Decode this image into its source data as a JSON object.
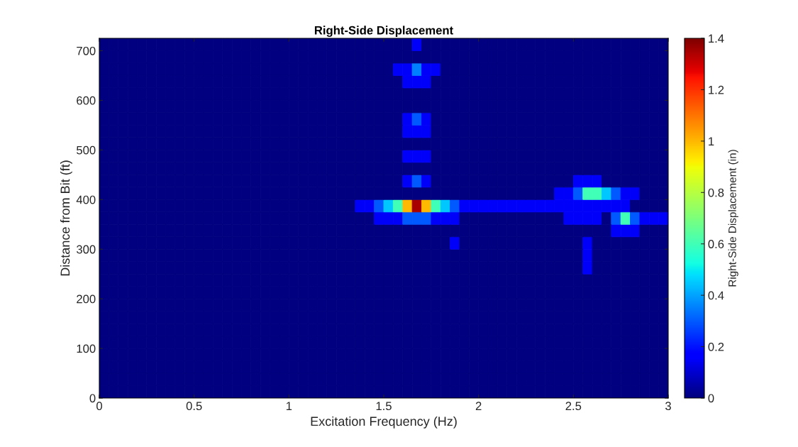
{
  "chart_data": {
    "type": "heatmap",
    "title": "Right-Side Displacement",
    "xlabel": "Excitation Frequency (Hz)",
    "ylabel": "Distance from Bit (ft)",
    "clabel": "Right-Side Displacement (in)",
    "x": [
      0.025,
      0.075,
      0.125,
      0.175,
      0.225,
      0.275,
      0.325,
      0.375,
      0.425,
      0.475,
      0.525,
      0.575,
      0.625,
      0.675,
      0.725,
      0.775,
      0.825,
      0.875,
      0.925,
      0.975,
      1.025,
      1.075,
      1.125,
      1.175,
      1.225,
      1.275,
      1.325,
      1.375,
      1.425,
      1.475,
      1.525,
      1.575,
      1.625,
      1.675,
      1.725,
      1.775,
      1.825,
      1.875,
      1.925,
      1.975,
      2.025,
      2.075,
      2.125,
      2.175,
      2.225,
      2.275,
      2.325,
      2.375,
      2.425,
      2.475,
      2.525,
      2.575,
      2.625,
      2.675,
      2.725,
      2.775,
      2.825,
      2.875,
      2.925,
      2.975
    ],
    "y": [
      712.5,
      687.5,
      662.5,
      637.5,
      612.5,
      587.5,
      562.5,
      537.5,
      512.5,
      487.5,
      462.5,
      437.5,
      412.5,
      387.5,
      362.5,
      337.5,
      312.5,
      287.5,
      262.5,
      237.5,
      212.5,
      187.5,
      162.5,
      137.5,
      112.5,
      87.5,
      62.5,
      37.5,
      12.5
    ],
    "cells": [
      [
        0,
        0,
        0,
        0,
        0,
        0,
        0,
        0,
        0,
        0,
        0,
        0,
        0,
        0,
        0,
        0,
        0,
        0,
        0,
        0,
        0,
        0,
        0,
        0,
        0,
        0,
        0,
        0,
        0,
        0,
        0,
        0,
        0,
        0.15,
        0,
        0,
        0,
        0,
        0,
        0,
        0,
        0,
        0,
        0,
        0,
        0,
        0,
        0,
        0,
        0,
        0,
        0,
        0,
        0,
        0,
        0,
        0,
        0,
        0,
        0
      ],
      [
        0,
        0,
        0,
        0,
        0,
        0,
        0,
        0,
        0,
        0,
        0,
        0,
        0,
        0,
        0,
        0,
        0,
        0,
        0,
        0,
        0,
        0,
        0,
        0,
        0,
        0,
        0,
        0,
        0,
        0,
        0,
        0,
        0,
        0,
        0,
        0,
        0,
        0,
        0,
        0,
        0,
        0,
        0,
        0,
        0,
        0,
        0,
        0,
        0,
        0,
        0,
        0,
        0,
        0,
        0,
        0,
        0,
        0,
        0,
        0
      ],
      [
        0,
        0,
        0,
        0,
        0,
        0,
        0,
        0,
        0,
        0,
        0,
        0,
        0,
        0,
        0,
        0,
        0,
        0,
        0,
        0,
        0,
        0,
        0,
        0,
        0,
        0,
        0,
        0,
        0,
        0,
        0,
        0.15,
        0.15,
        0.35,
        0.15,
        0.15,
        0,
        0,
        0,
        0,
        0,
        0,
        0,
        0,
        0,
        0,
        0,
        0,
        0,
        0,
        0,
        0,
        0,
        0,
        0,
        0,
        0,
        0,
        0,
        0
      ],
      [
        0,
        0,
        0,
        0,
        0,
        0,
        0,
        0,
        0,
        0,
        0,
        0,
        0,
        0,
        0,
        0,
        0,
        0,
        0,
        0,
        0,
        0,
        0,
        0,
        0,
        0,
        0,
        0,
        0,
        0,
        0,
        0,
        0.15,
        0.15,
        0.15,
        0,
        0,
        0,
        0,
        0,
        0,
        0,
        0,
        0,
        0,
        0,
        0,
        0,
        0,
        0,
        0,
        0,
        0,
        0,
        0,
        0,
        0,
        0,
        0,
        0
      ],
      [
        0,
        0,
        0,
        0,
        0,
        0,
        0,
        0,
        0,
        0,
        0,
        0,
        0,
        0,
        0,
        0,
        0,
        0,
        0,
        0,
        0,
        0,
        0,
        0,
        0,
        0,
        0,
        0,
        0,
        0,
        0,
        0,
        0,
        0,
        0,
        0,
        0,
        0,
        0,
        0,
        0,
        0,
        0,
        0,
        0,
        0,
        0,
        0,
        0,
        0,
        0,
        0,
        0,
        0,
        0,
        0,
        0,
        0,
        0,
        0
      ],
      [
        0,
        0,
        0,
        0,
        0,
        0,
        0,
        0,
        0,
        0,
        0,
        0,
        0,
        0,
        0,
        0,
        0,
        0,
        0,
        0,
        0,
        0,
        0,
        0,
        0,
        0,
        0,
        0,
        0,
        0,
        0,
        0,
        0,
        0,
        0,
        0,
        0,
        0,
        0,
        0,
        0,
        0,
        0,
        0,
        0,
        0,
        0,
        0,
        0,
        0,
        0,
        0,
        0,
        0,
        0,
        0,
        0,
        0,
        0,
        0
      ],
      [
        0,
        0,
        0,
        0,
        0,
        0,
        0,
        0,
        0,
        0,
        0,
        0,
        0,
        0,
        0,
        0,
        0,
        0,
        0,
        0,
        0,
        0,
        0,
        0,
        0,
        0,
        0,
        0,
        0,
        0,
        0,
        0,
        0.15,
        0.3,
        0.15,
        0,
        0,
        0,
        0,
        0,
        0,
        0,
        0,
        0,
        0,
        0,
        0,
        0,
        0,
        0,
        0,
        0,
        0,
        0,
        0,
        0,
        0,
        0,
        0,
        0
      ],
      [
        0,
        0,
        0,
        0,
        0,
        0,
        0,
        0,
        0,
        0,
        0,
        0,
        0,
        0,
        0,
        0,
        0,
        0,
        0,
        0,
        0,
        0,
        0,
        0,
        0,
        0,
        0,
        0,
        0,
        0,
        0,
        0,
        0.15,
        0.15,
        0.15,
        0,
        0,
        0,
        0,
        0,
        0,
        0,
        0,
        0,
        0,
        0,
        0,
        0,
        0,
        0,
        0,
        0,
        0,
        0,
        0,
        0,
        0,
        0,
        0,
        0
      ],
      [
        0,
        0,
        0,
        0,
        0,
        0,
        0,
        0,
        0,
        0,
        0,
        0,
        0,
        0,
        0,
        0,
        0,
        0,
        0,
        0,
        0,
        0,
        0,
        0,
        0,
        0,
        0,
        0,
        0,
        0,
        0,
        0,
        0,
        0,
        0,
        0,
        0,
        0,
        0,
        0,
        0,
        0,
        0,
        0,
        0,
        0,
        0,
        0,
        0,
        0,
        0,
        0,
        0,
        0,
        0,
        0,
        0,
        0,
        0,
        0
      ],
      [
        0,
        0,
        0,
        0,
        0,
        0,
        0,
        0,
        0,
        0,
        0,
        0,
        0,
        0,
        0,
        0,
        0,
        0,
        0,
        0,
        0,
        0,
        0,
        0,
        0,
        0,
        0,
        0,
        0,
        0,
        0,
        0,
        0.15,
        0.15,
        0.15,
        0,
        0,
        0,
        0,
        0,
        0,
        0,
        0,
        0,
        0,
        0,
        0,
        0,
        0,
        0,
        0,
        0,
        0,
        0,
        0,
        0,
        0,
        0,
        0,
        0
      ],
      [
        0,
        0,
        0,
        0,
        0,
        0,
        0,
        0,
        0,
        0,
        0,
        0,
        0,
        0,
        0,
        0,
        0,
        0,
        0,
        0,
        0,
        0,
        0,
        0,
        0,
        0,
        0,
        0,
        0,
        0,
        0,
        0,
        0,
        0,
        0,
        0,
        0,
        0,
        0,
        0,
        0,
        0,
        0,
        0,
        0,
        0,
        0,
        0,
        0,
        0,
        0,
        0,
        0,
        0,
        0,
        0,
        0,
        0,
        0,
        0
      ],
      [
        0,
        0,
        0,
        0,
        0,
        0,
        0,
        0,
        0,
        0,
        0,
        0,
        0,
        0,
        0,
        0,
        0,
        0,
        0,
        0,
        0,
        0,
        0,
        0,
        0,
        0,
        0,
        0,
        0,
        0,
        0,
        0,
        0.15,
        0.3,
        0.15,
        0,
        0,
        0,
        0,
        0,
        0,
        0,
        0,
        0,
        0,
        0,
        0,
        0,
        0,
        0,
        0.15,
        0.15,
        0.15,
        0,
        0,
        0,
        0,
        0,
        0,
        0
      ],
      [
        0,
        0,
        0,
        0,
        0,
        0,
        0,
        0,
        0,
        0,
        0,
        0,
        0,
        0,
        0,
        0,
        0,
        0,
        0,
        0,
        0,
        0,
        0,
        0,
        0,
        0,
        0,
        0,
        0,
        0,
        0,
        0,
        0,
        0,
        0,
        0,
        0,
        0,
        0,
        0,
        0,
        0,
        0,
        0,
        0,
        0,
        0,
        0,
        0.15,
        0.15,
        0.3,
        0.6,
        0.6,
        0.45,
        0.3,
        0.15,
        0.15,
        0,
        0,
        0
      ],
      [
        0,
        0,
        0,
        0,
        0,
        0,
        0,
        0,
        0,
        0,
        0,
        0,
        0,
        0,
        0,
        0,
        0,
        0,
        0,
        0,
        0,
        0,
        0,
        0,
        0,
        0,
        0,
        0.15,
        0.15,
        0.3,
        0.45,
        0.6,
        1.0,
        1.35,
        1.0,
        0.6,
        0.45,
        0.3,
        0.15,
        0.15,
        0.15,
        0.15,
        0.15,
        0.15,
        0.15,
        0.15,
        0.15,
        0.15,
        0.15,
        0.15,
        0.15,
        0.15,
        0.15,
        0.15,
        0.15,
        0.15,
        0,
        0,
        0,
        0
      ],
      [
        0,
        0,
        0,
        0,
        0,
        0,
        0,
        0,
        0,
        0,
        0,
        0,
        0,
        0,
        0,
        0,
        0,
        0,
        0,
        0,
        0,
        0,
        0,
        0,
        0,
        0,
        0,
        0,
        0,
        0.15,
        0.15,
        0.15,
        0.3,
        0.3,
        0.3,
        0.15,
        0.15,
        0.15,
        0,
        0,
        0,
        0,
        0,
        0,
        0,
        0,
        0,
        0,
        0,
        0.15,
        0.15,
        0.15,
        0.15,
        0,
        0.3,
        0.6,
        0.3,
        0.15,
        0.15,
        0.15
      ],
      [
        0,
        0,
        0,
        0,
        0,
        0,
        0,
        0,
        0,
        0,
        0,
        0,
        0,
        0,
        0,
        0,
        0,
        0,
        0,
        0,
        0,
        0,
        0,
        0,
        0,
        0,
        0,
        0,
        0,
        0,
        0,
        0,
        0,
        0,
        0,
        0,
        0,
        0,
        0,
        0,
        0,
        0,
        0,
        0,
        0,
        0,
        0,
        0,
        0,
        0,
        0,
        0,
        0,
        0,
        0.15,
        0.15,
        0.15,
        0,
        0,
        0
      ],
      [
        0,
        0,
        0,
        0,
        0,
        0,
        0,
        0,
        0,
        0,
        0,
        0,
        0,
        0,
        0,
        0,
        0,
        0,
        0,
        0,
        0,
        0,
        0,
        0,
        0,
        0,
        0,
        0,
        0,
        0,
        0,
        0,
        0,
        0,
        0,
        0,
        0,
        0.15,
        0,
        0,
        0,
        0,
        0,
        0,
        0,
        0,
        0,
        0,
        0,
        0,
        0,
        0.15,
        0,
        0,
        0,
        0,
        0,
        0,
        0,
        0
      ],
      [
        0,
        0,
        0,
        0,
        0,
        0,
        0,
        0,
        0,
        0,
        0,
        0,
        0,
        0,
        0,
        0,
        0,
        0,
        0,
        0,
        0,
        0,
        0,
        0,
        0,
        0,
        0,
        0,
        0,
        0,
        0,
        0,
        0,
        0,
        0,
        0,
        0,
        0,
        0,
        0,
        0,
        0,
        0,
        0,
        0,
        0,
        0,
        0,
        0,
        0,
        0,
        0.15,
        0,
        0,
        0,
        0,
        0,
        0,
        0,
        0
      ],
      [
        0,
        0,
        0,
        0,
        0,
        0,
        0,
        0,
        0,
        0,
        0,
        0,
        0,
        0,
        0,
        0,
        0,
        0,
        0,
        0,
        0,
        0,
        0,
        0,
        0,
        0,
        0,
        0,
        0,
        0,
        0,
        0,
        0,
        0,
        0,
        0,
        0,
        0,
        0,
        0,
        0,
        0,
        0,
        0,
        0,
        0,
        0,
        0,
        0,
        0,
        0,
        0.15,
        0,
        0,
        0,
        0,
        0,
        0,
        0,
        0
      ],
      [
        0,
        0,
        0,
        0,
        0,
        0,
        0,
        0,
        0,
        0,
        0,
        0,
        0,
        0,
        0,
        0,
        0,
        0,
        0,
        0,
        0,
        0,
        0,
        0,
        0,
        0,
        0,
        0,
        0,
        0,
        0,
        0,
        0,
        0,
        0,
        0,
        0,
        0,
        0,
        0,
        0,
        0,
        0,
        0,
        0,
        0,
        0,
        0,
        0,
        0,
        0,
        0,
        0,
        0,
        0,
        0,
        0,
        0,
        0,
        0
      ],
      [
        0,
        0,
        0,
        0,
        0,
        0,
        0,
        0,
        0,
        0,
        0,
        0,
        0,
        0,
        0,
        0,
        0,
        0,
        0,
        0,
        0,
        0,
        0,
        0,
        0,
        0,
        0,
        0,
        0,
        0,
        0,
        0,
        0,
        0,
        0,
        0,
        0,
        0,
        0,
        0,
        0,
        0,
        0,
        0,
        0,
        0,
        0,
        0,
        0,
        0,
        0,
        0,
        0,
        0,
        0,
        0,
        0,
        0,
        0,
        0
      ],
      [
        0,
        0,
        0,
        0,
        0,
        0,
        0,
        0,
        0,
        0,
        0,
        0,
        0,
        0,
        0,
        0,
        0,
        0,
        0,
        0,
        0,
        0,
        0,
        0,
        0,
        0,
        0,
        0,
        0,
        0,
        0,
        0,
        0,
        0,
        0,
        0,
        0,
        0,
        0,
        0,
        0,
        0,
        0,
        0,
        0,
        0,
        0,
        0,
        0,
        0,
        0,
        0,
        0,
        0,
        0,
        0,
        0,
        0,
        0,
        0
      ],
      [
        0,
        0,
        0,
        0,
        0,
        0,
        0,
        0,
        0,
        0,
        0,
        0,
        0,
        0,
        0,
        0,
        0,
        0,
        0,
        0,
        0,
        0,
        0,
        0,
        0,
        0,
        0,
        0,
        0,
        0,
        0,
        0,
        0,
        0,
        0,
        0,
        0,
        0,
        0,
        0,
        0,
        0,
        0,
        0,
        0,
        0,
        0,
        0,
        0,
        0,
        0,
        0,
        0,
        0,
        0,
        0,
        0,
        0,
        0,
        0
      ],
      [
        0,
        0,
        0,
        0,
        0,
        0,
        0,
        0,
        0,
        0,
        0,
        0,
        0,
        0,
        0,
        0,
        0,
        0,
        0,
        0,
        0,
        0,
        0,
        0,
        0,
        0,
        0,
        0,
        0,
        0,
        0,
        0,
        0,
        0,
        0,
        0,
        0,
        0,
        0,
        0,
        0,
        0,
        0,
        0,
        0,
        0,
        0,
        0,
        0,
        0,
        0,
        0,
        0,
        0,
        0,
        0,
        0,
        0,
        0,
        0
      ],
      [
        0,
        0,
        0,
        0,
        0,
        0,
        0,
        0,
        0,
        0,
        0,
        0,
        0,
        0,
        0,
        0,
        0,
        0,
        0,
        0,
        0,
        0,
        0,
        0,
        0,
        0,
        0,
        0,
        0,
        0,
        0,
        0,
        0,
        0,
        0,
        0,
        0,
        0,
        0,
        0,
        0,
        0,
        0,
        0,
        0,
        0,
        0,
        0,
        0,
        0,
        0,
        0,
        0,
        0,
        0,
        0,
        0,
        0,
        0,
        0
      ],
      [
        0,
        0,
        0,
        0,
        0,
        0,
        0,
        0,
        0,
        0,
        0,
        0,
        0,
        0,
        0,
        0,
        0,
        0,
        0,
        0,
        0,
        0,
        0,
        0,
        0,
        0,
        0,
        0,
        0,
        0,
        0,
        0,
        0,
        0,
        0,
        0,
        0,
        0,
        0,
        0,
        0,
        0,
        0,
        0,
        0,
        0,
        0,
        0,
        0,
        0,
        0,
        0,
        0,
        0,
        0,
        0,
        0,
        0,
        0,
        0
      ],
      [
        0,
        0,
        0,
        0,
        0,
        0,
        0,
        0,
        0,
        0,
        0,
        0,
        0,
        0,
        0,
        0,
        0,
        0,
        0,
        0,
        0,
        0,
        0,
        0,
        0,
        0,
        0,
        0,
        0,
        0,
        0,
        0,
        0,
        0,
        0,
        0,
        0,
        0,
        0,
        0,
        0,
        0,
        0,
        0,
        0,
        0,
        0,
        0,
        0,
        0,
        0,
        0,
        0,
        0,
        0,
        0,
        0,
        0,
        0,
        0
      ],
      [
        0,
        0,
        0,
        0,
        0,
        0,
        0,
        0,
        0,
        0,
        0,
        0,
        0,
        0,
        0,
        0,
        0,
        0,
        0,
        0,
        0,
        0,
        0,
        0,
        0,
        0,
        0,
        0,
        0,
        0,
        0,
        0,
        0,
        0,
        0,
        0,
        0,
        0,
        0,
        0,
        0,
        0,
        0,
        0,
        0,
        0,
        0,
        0,
        0,
        0,
        0,
        0,
        0,
        0,
        0,
        0,
        0,
        0,
        0,
        0
      ],
      [
        0,
        0,
        0,
        0,
        0,
        0,
        0,
        0,
        0,
        0,
        0,
        0,
        0,
        0,
        0,
        0,
        0,
        0,
        0,
        0,
        0,
        0,
        0,
        0,
        0,
        0,
        0,
        0,
        0,
        0,
        0,
        0,
        0,
        0,
        0,
        0,
        0,
        0,
        0,
        0,
        0,
        0,
        0,
        0,
        0,
        0,
        0,
        0,
        0,
        0,
        0,
        0,
        0,
        0,
        0,
        0,
        0,
        0,
        0,
        0
      ]
    ],
    "xlim": [
      0,
      3
    ],
    "ylim": [
      0,
      725
    ],
    "xticks": [
      0,
      0.5,
      1,
      1.5,
      2,
      2.5,
      3
    ],
    "yticks": [
      0,
      100,
      200,
      300,
      400,
      500,
      600,
      700
    ],
    "clim": [
      0,
      1.4
    ],
    "cticks": [
      0,
      0.2,
      0.4,
      0.6,
      0.8,
      1,
      1.2,
      1.4
    ]
  }
}
